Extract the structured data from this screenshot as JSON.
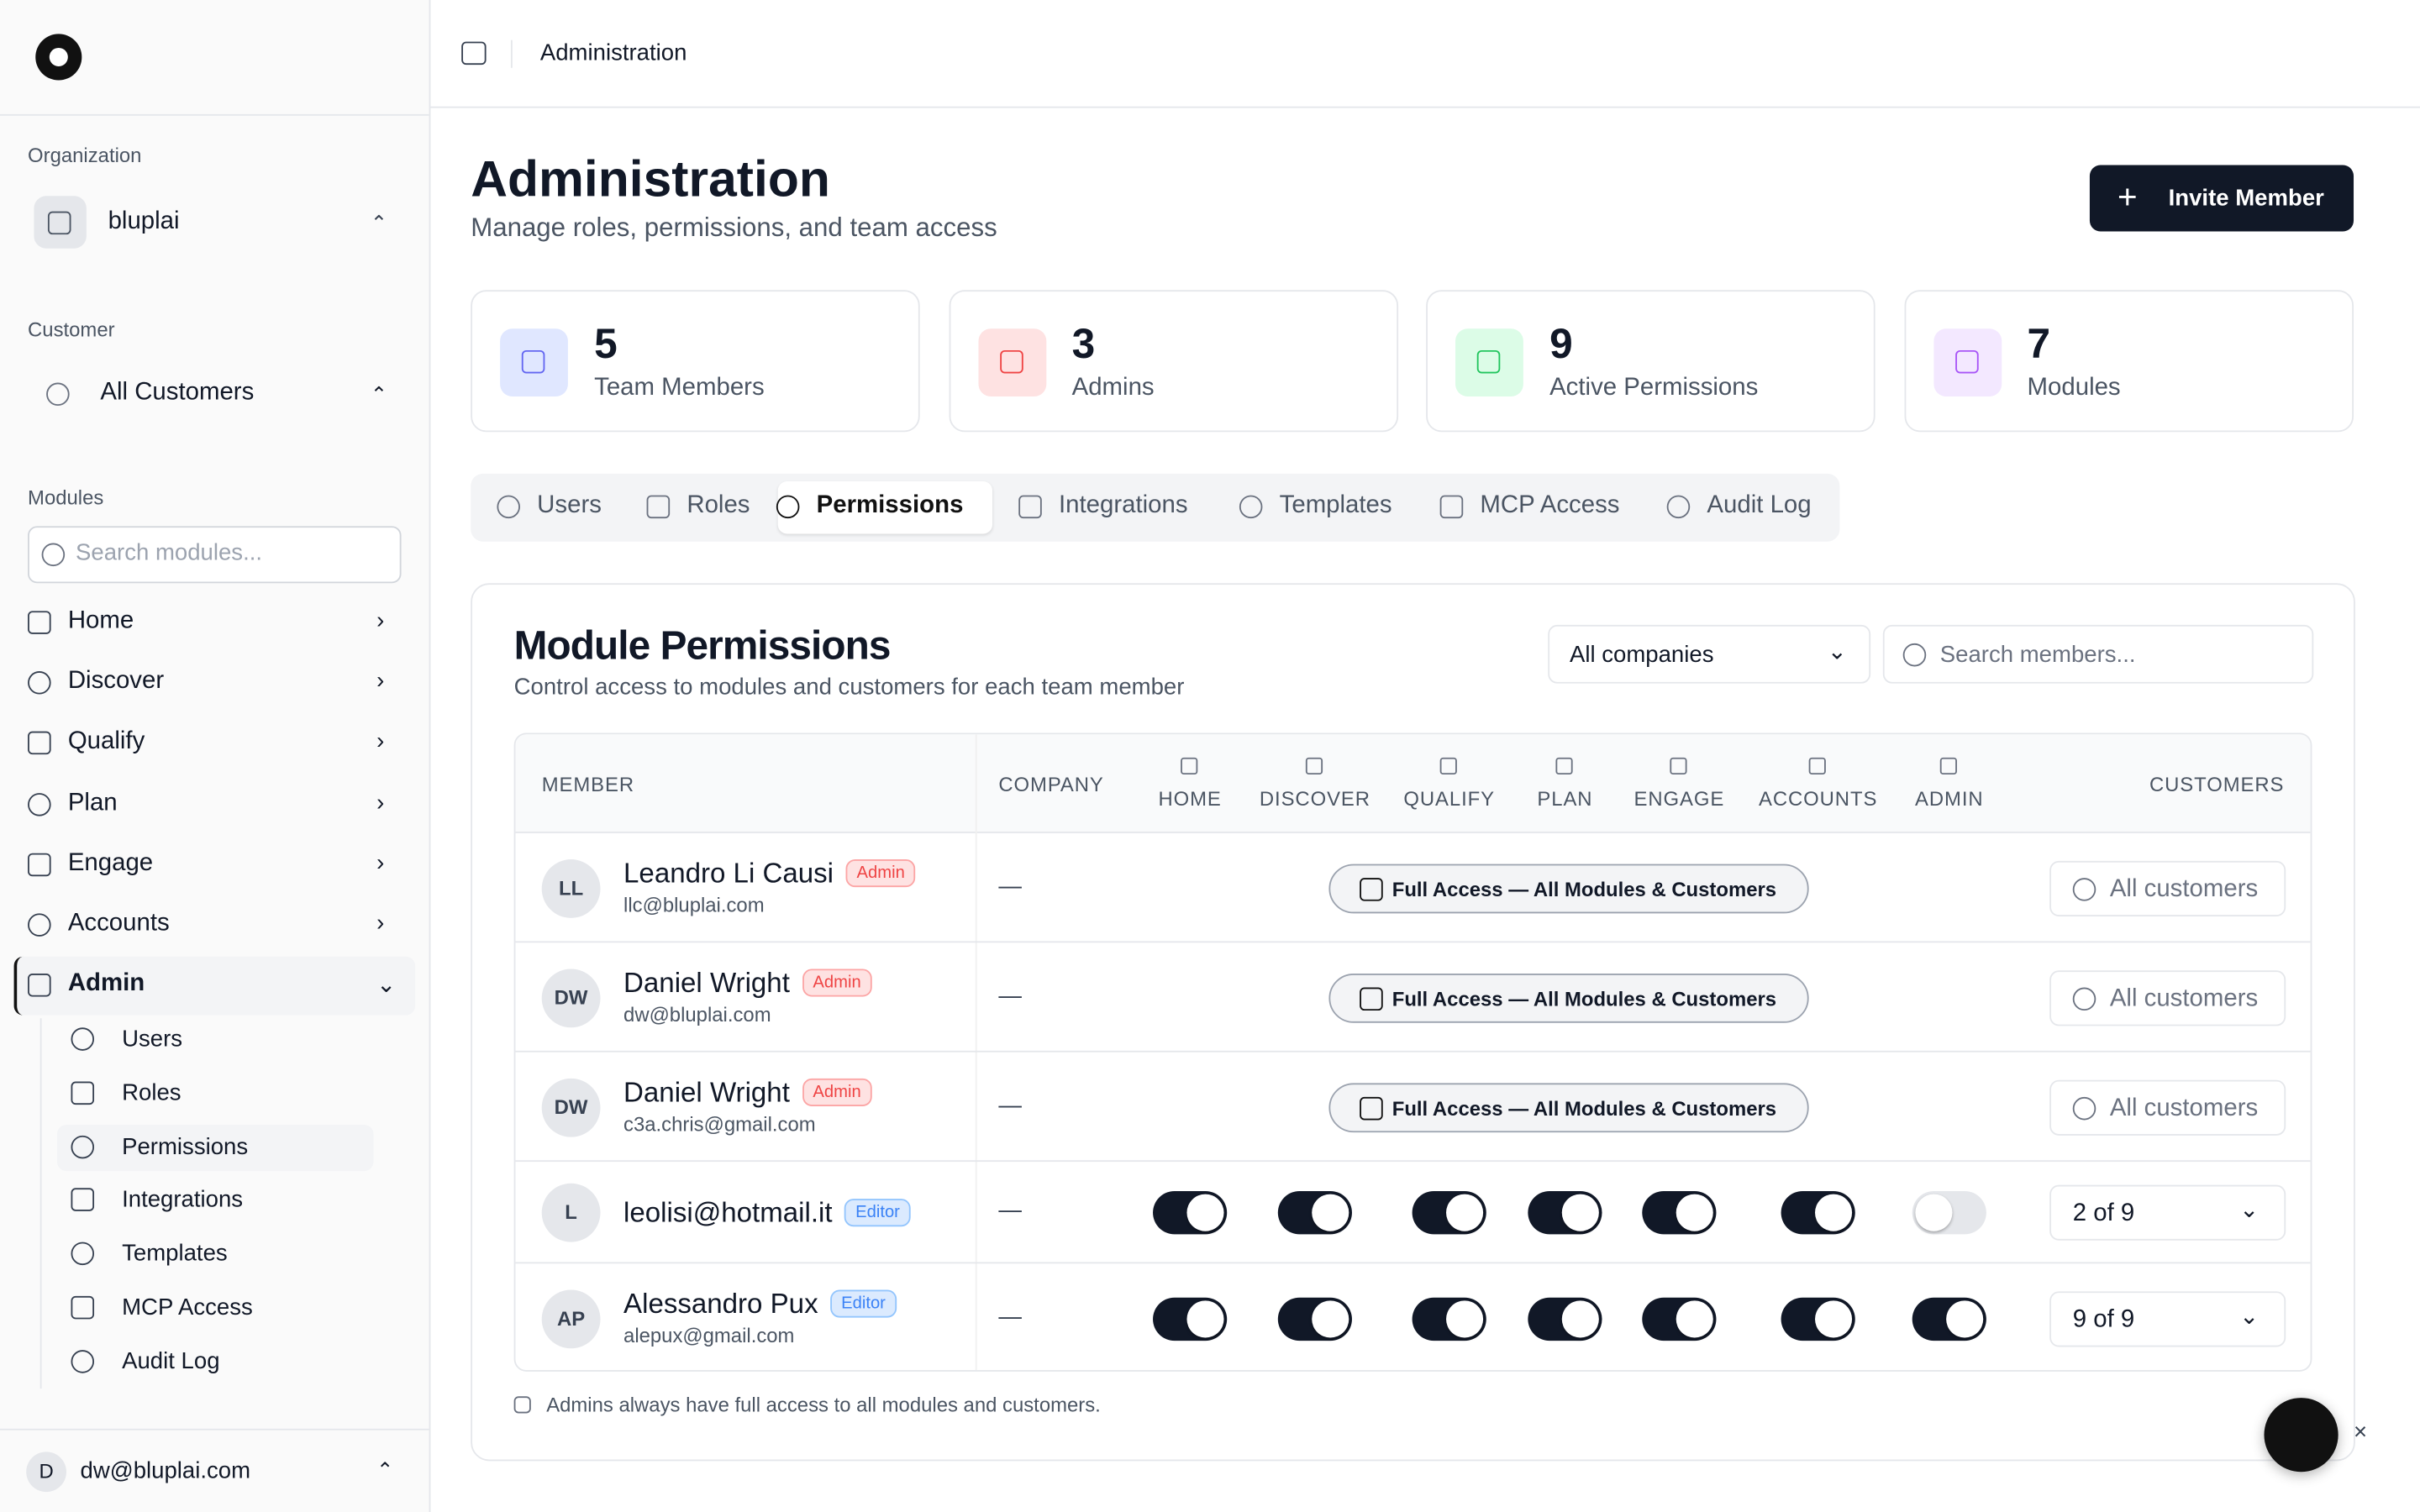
{
  "sidebar": {
    "org_label": "Organization",
    "org": "bluplai",
    "customer_label": "Customer",
    "customer": "All Customers",
    "modules_label": "Modules",
    "search_placeholder": "Search modules...",
    "nav": [
      "Home",
      "Discover",
      "Qualify",
      "Plan",
      "Engage",
      "Accounts",
      "Admin"
    ],
    "admin_items": [
      "Users",
      "Roles",
      "Permissions",
      "Integrations",
      "Templates",
      "MCP Access",
      "Audit Log"
    ],
    "user_initial": "D",
    "user": "dw@bluplai.com"
  },
  "header": {
    "breadcrumb": "Administration"
  },
  "page": {
    "title": "Administration",
    "subtitle": "Manage roles, permissions, and team access",
    "invite_button": "Invite Member"
  },
  "stats": [
    {
      "value": "5",
      "label": "Team Members"
    },
    {
      "value": "3",
      "label": "Admins"
    },
    {
      "value": "9",
      "label": "Active Permissions"
    },
    {
      "value": "7",
      "label": "Modules"
    }
  ],
  "tabs": [
    "Users",
    "Roles",
    "Permissions",
    "Integrations",
    "Templates",
    "MCP Access",
    "Audit Log"
  ],
  "panel": {
    "title": "Module Permissions",
    "subtitle": "Control access to modules and customers for each team member",
    "company_filter": "All companies",
    "search_placeholder": "Search members...",
    "columns": [
      "MEMBER",
      "COMPANY",
      "HOME",
      "DISCOVER",
      "QUALIFY",
      "PLAN",
      "ENGAGE",
      "ACCOUNTS",
      "ADMIN",
      "CUSTOMERS"
    ],
    "rows": [
      {
        "initials": "LL",
        "name": "Leandro Li Causi",
        "role": "Admin",
        "email": "llc@bluplai.com",
        "company": "—",
        "access": "Full Access — All Modules & Customers",
        "customers": "All customers"
      },
      {
        "initials": "DW",
        "name": "Daniel Wright",
        "role": "Admin",
        "email": "dw@bluplai.com",
        "company": "—",
        "access": "Full Access — All Modules & Customers",
        "customers": "All customers"
      },
      {
        "initials": "DW",
        "name": "Daniel Wright",
        "role": "Admin",
        "email": "c3a.chris@gmail.com",
        "company": "—",
        "access": "Full Access — All Modules & Customers",
        "customers": "All customers"
      },
      {
        "initials": "L",
        "name": "leolisi@hotmail.it",
        "role": "Editor",
        "company": "—",
        "toggles": [
          true,
          true,
          true,
          true,
          true,
          true,
          false
        ],
        "customers": "2 of 9"
      },
      {
        "initials": "AP",
        "name": "Alessandro Pux",
        "role": "Editor",
        "email": "alepux@gmail.com",
        "company": "—",
        "toggles": [
          true,
          true,
          true,
          true,
          true,
          true,
          true
        ],
        "customers": "9 of 9"
      }
    ],
    "note": "Admins always have full access to all modules and customers."
  }
}
